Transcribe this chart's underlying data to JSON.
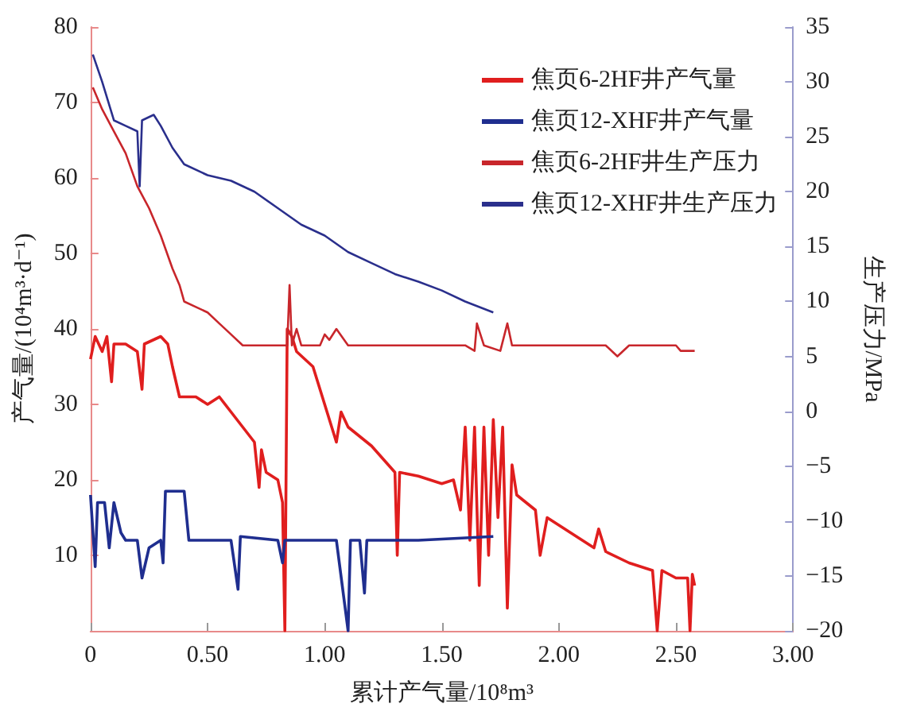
{
  "chart_data": {
    "type": "line",
    "xlabel": "累计产气量/10⁸m³",
    "ylabel": "产气量/(10⁴m³·d⁻¹)",
    "y2label": "生产压力/MPa",
    "xlim": [
      0,
      3
    ],
    "xticks": [
      {
        "value": 0,
        "label": "0"
      },
      {
        "value": 0.5,
        "label": "0.50"
      },
      {
        "value": 1,
        "label": "1.00"
      },
      {
        "value": 1.5,
        "label": "1.50"
      },
      {
        "value": 2,
        "label": "2.00"
      },
      {
        "value": 2.5,
        "label": "2.50"
      },
      {
        "value": 3,
        "label": "3.00"
      }
    ],
    "ylim": [
      0,
      80
    ],
    "yticks": [
      10,
      20,
      30,
      40,
      50,
      60,
      70,
      80
    ],
    "y2lim": [
      -20,
      35
    ],
    "y2ticks": [
      -20,
      -15,
      -10,
      -5,
      0,
      5,
      10,
      15,
      20,
      25,
      30,
      35
    ],
    "grid": false,
    "legend": "top right",
    "marker": "none",
    "series": [
      {
        "name": "焦页6-2HF井产气量",
        "color": "#e01e1e",
        "x": [
          0,
          0.02,
          0.05,
          0.07,
          0.09,
          0.1,
          0.15,
          0.2,
          0.22,
          0.23,
          0.3,
          0.33,
          0.35,
          0.38,
          0.45,
          0.5,
          0.55,
          0.6,
          0.65,
          0.7,
          0.72,
          0.73,
          0.75,
          0.8,
          0.82,
          0.83,
          0.84,
          0.86,
          0.88,
          0.95,
          1,
          1.05,
          1.07,
          1.1,
          1.2,
          1.3,
          1.31,
          1.32,
          1.4,
          1.5,
          1.55,
          1.58,
          1.6,
          1.62,
          1.64,
          1.66,
          1.68,
          1.7,
          1.72,
          1.74,
          1.76,
          1.78,
          1.8,
          1.82,
          1.9,
          1.92,
          1.95,
          2,
          2.1,
          2.15,
          2.17,
          2.2,
          2.3,
          2.4,
          2.42,
          2.44,
          2.5,
          2.55,
          2.56,
          2.57,
          2.58
        ],
        "values": [
          36,
          39,
          37,
          39,
          33,
          38,
          38,
          37,
          32,
          38,
          39,
          38,
          35,
          31,
          31,
          30,
          31,
          29,
          27,
          25,
          19,
          24,
          21,
          20,
          17,
          0,
          40,
          39,
          37,
          35,
          30,
          25,
          29,
          27,
          24.5,
          21,
          10,
          21,
          20.5,
          19.5,
          20,
          16,
          27,
          12,
          27,
          6,
          27,
          10,
          28,
          15,
          27,
          3,
          22,
          18,
          16,
          10,
          15,
          14,
          12,
          11,
          13.5,
          10.5,
          9,
          8,
          0,
          8,
          7,
          7,
          0,
          7.5,
          6
        ]
      },
      {
        "name": "焦页12-XHF井产气量",
        "color": "#1f2e8f",
        "x": [
          0,
          0.02,
          0.03,
          0.06,
          0.08,
          0.1,
          0.13,
          0.15,
          0.2,
          0.22,
          0.25,
          0.3,
          0.31,
          0.32,
          0.4,
          0.42,
          0.5,
          0.6,
          0.63,
          0.64,
          0.8,
          0.82,
          0.83,
          1.05,
          1.1,
          1.11,
          1.15,
          1.17,
          1.18,
          1.4,
          1.72
        ],
        "values": [
          18,
          8.5,
          17,
          17,
          11,
          17,
          13,
          12,
          12,
          7,
          11,
          12,
          9,
          18.5,
          18.5,
          12,
          12,
          12,
          5.5,
          12.5,
          12,
          9,
          12,
          12,
          0,
          12,
          12,
          5,
          12,
          12,
          12.5
        ]
      },
      {
        "name": "焦页6-2HF井生产压力",
        "color": "#c8262b",
        "axis": "y2",
        "x": [
          0.01,
          0.05,
          0.1,
          0.15,
          0.2,
          0.25,
          0.3,
          0.35,
          0.38,
          0.4,
          0.45,
          0.5,
          0.55,
          0.6,
          0.65,
          0.7,
          0.84,
          0.85,
          0.86,
          0.88,
          0.9,
          0.98,
          1,
          1.02,
          1.05,
          1.1,
          1.2,
          1.5,
          1.6,
          1.64,
          1.65,
          1.68,
          1.75,
          1.78,
          1.8,
          2,
          2.2,
          2.25,
          2.3,
          2.5,
          2.52,
          2.58
        ],
        "values": [
          29.5,
          27.5,
          25.5,
          23.5,
          20.5,
          18.5,
          16,
          13,
          11.5,
          10,
          9.5,
          9,
          8,
          7,
          6,
          6,
          6,
          11.5,
          6,
          7.5,
          6,
          6,
          7,
          6.5,
          7.5,
          6,
          6,
          6,
          6,
          5.5,
          8,
          6,
          5.5,
          8,
          6,
          6,
          6,
          5,
          6,
          6,
          5.5,
          5.5
        ]
      },
      {
        "name": "焦页12-XHF井生产压力",
        "color": "#2a2f8c",
        "axis": "y2",
        "x": [
          0.01,
          0.05,
          0.1,
          0.15,
          0.2,
          0.21,
          0.22,
          0.27,
          0.3,
          0.35,
          0.4,
          0.5,
          0.6,
          0.7,
          0.8,
          0.9,
          1,
          1.1,
          1.2,
          1.3,
          1.4,
          1.5,
          1.6,
          1.72
        ],
        "values": [
          32.5,
          30,
          26.5,
          26,
          25.5,
          20.5,
          26.5,
          27,
          26,
          24,
          22.5,
          21.5,
          21,
          20,
          18.5,
          17,
          16,
          14.5,
          13.5,
          12.5,
          11.8,
          11,
          10,
          9
        ]
      }
    ]
  }
}
